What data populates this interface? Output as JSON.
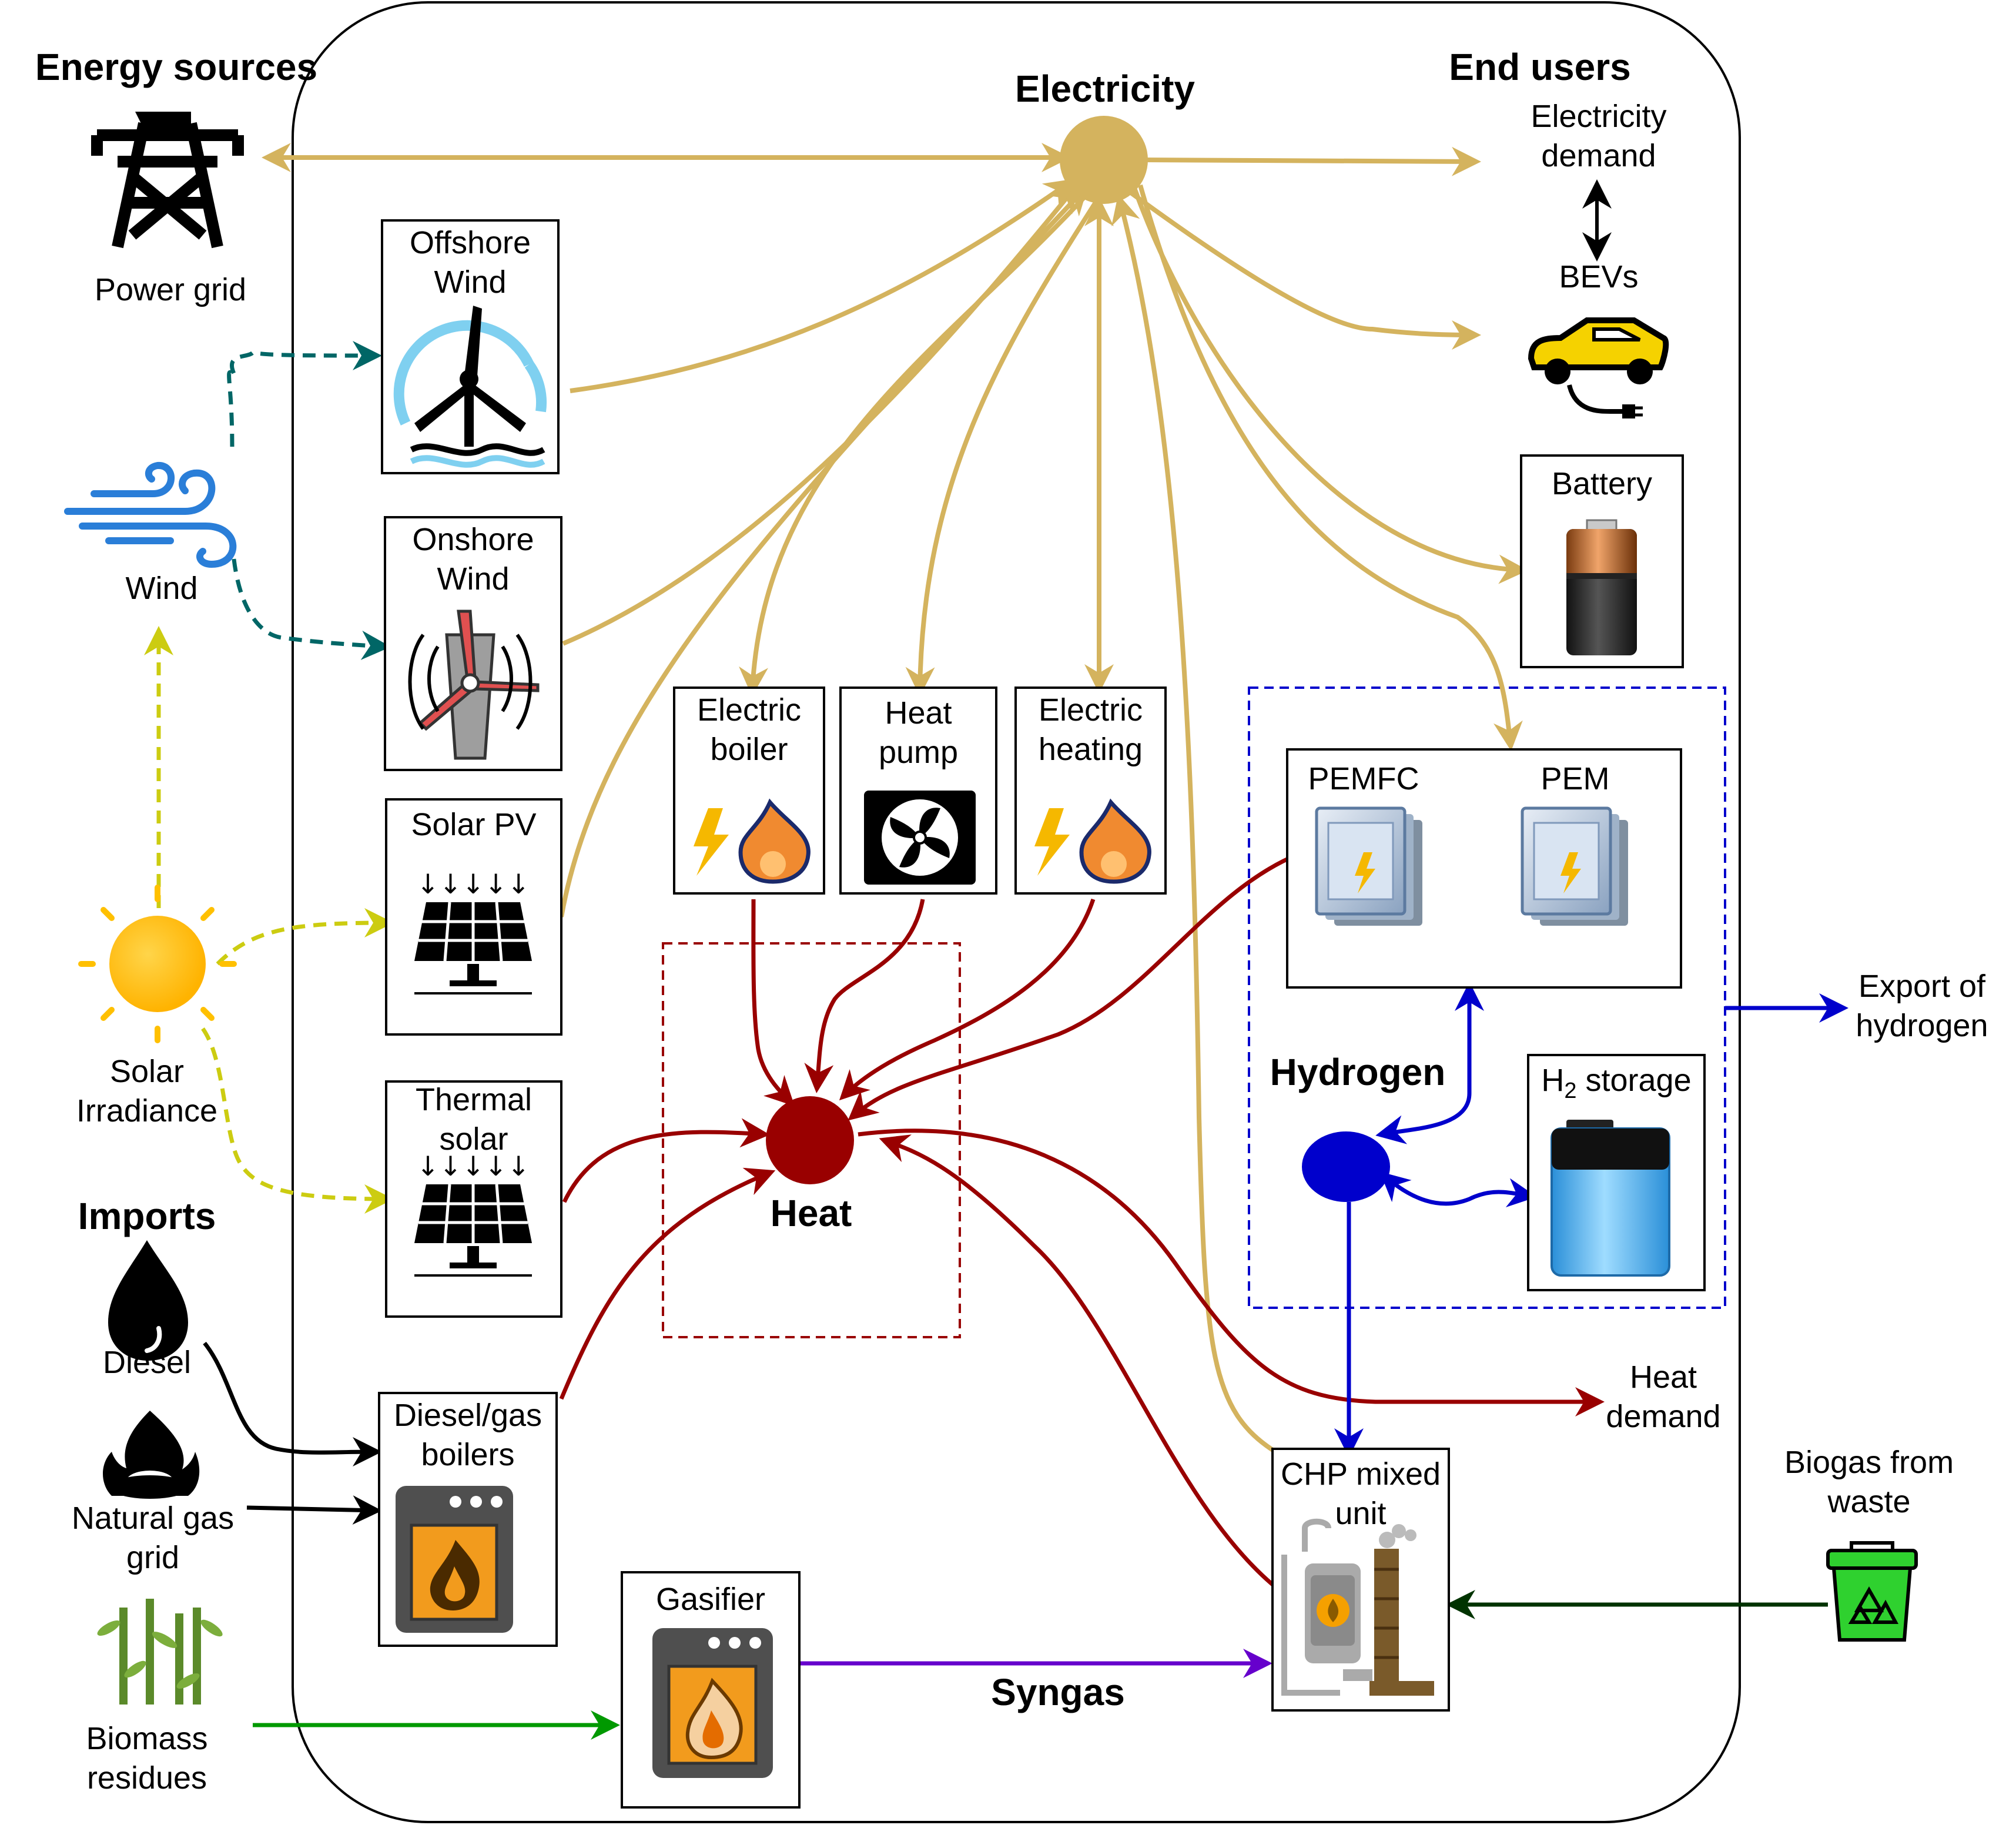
{
  "headings": {
    "energy_sources": "Energy sources",
    "end_users": "End users",
    "imports": "Imports"
  },
  "hubs": {
    "electricity": "Electricity",
    "heat": "Heat",
    "hydrogen": "Hydrogen",
    "syngas": "Syngas"
  },
  "sources": {
    "power_grid": "Power grid",
    "wind": "Wind",
    "solar": "Solar\nIrradiance",
    "diesel": "Diesel",
    "natural_gas": "Natural gas\ngrid",
    "biomass": "Biomass\nresidues",
    "biogas": "Biogas from\nwaste"
  },
  "boxes": {
    "offshore_wind": "Offshore\nWind",
    "onshore_wind": "Onshore\nWind",
    "solar_pv": "Solar PV",
    "thermal_solar": "Thermal\nsolar",
    "diesel_gas_boilers": "Diesel/gas\nboilers",
    "gasifier": "Gasifier",
    "electric_boiler": "Electric\nboiler",
    "heat_pump": "Heat\npump",
    "electric_heating": "Electric\nheating",
    "pemfc": "PEMFC",
    "pem": "PEM",
    "h2_storage_prefix": "H",
    "h2_storage_sub": "2",
    "h2_storage_suffix": " storage",
    "battery": "Battery",
    "chp": "CHP mixed\nunit"
  },
  "end_users": {
    "electricity_demand": "Electricity\ndemand",
    "bevs": "BEVs",
    "heat_demand": "Heat\ndemand",
    "export_hydrogen": "Export of\nhydrogen"
  },
  "colors": {
    "electricity": "#d4b35e",
    "heat": "#990000",
    "hydrogen": "#0000cc",
    "wind_flow": "#006666",
    "solar_flow": "#cccc11",
    "syngas": "#6600cc",
    "biomass_flow": "#009900",
    "biogas_flow": "#003300",
    "imports_flow": "#000000"
  }
}
